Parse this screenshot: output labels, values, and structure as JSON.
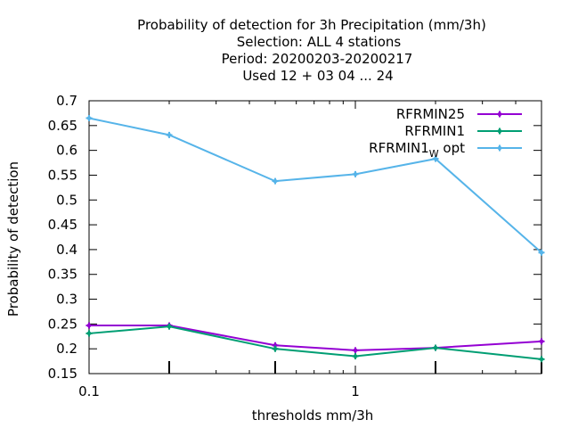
{
  "chart_data": {
    "type": "line",
    "title_lines": [
      "Probability of detection  for 3h Precipitation (mm/3h)",
      "Selection: ALL      4 stations",
      "Period: 20200203-20200217",
      "Used  12 + 03 04 ... 24"
    ],
    "xlabel": "thresholds mm/3h",
    "ylabel": "Probability of detection",
    "x_scale": "log",
    "xlim": [
      0.1,
      5
    ],
    "ylim": [
      0.15,
      0.7
    ],
    "x_ticks": [
      0.1,
      1
    ],
    "x_tick_labels": [
      "0.1",
      "1"
    ],
    "x_minor_ticks": [
      0.2,
      0.3,
      0.4,
      0.5,
      0.6,
      0.7,
      0.8,
      0.9,
      2,
      3,
      4,
      5
    ],
    "y_ticks": [
      0.15,
      0.2,
      0.25,
      0.3,
      0.35,
      0.4,
      0.45,
      0.5,
      0.55,
      0.6,
      0.65,
      0.7
    ],
    "y_tick_labels": [
      "0.15",
      "0.2",
      "0.25",
      "0.3",
      "0.35",
      "0.4",
      "0.45",
      "0.5",
      "0.55",
      "0.6",
      "0.65",
      "0.7"
    ],
    "grid": false,
    "legend_position": "top-right",
    "x": [
      0.1,
      0.2,
      0.5,
      1,
      2,
      5
    ],
    "series": [
      {
        "name": "RFRMIN25",
        "color": "#9400d3",
        "values": [
          0.247,
          0.247,
          0.207,
          0.197,
          0.202,
          0.215
        ]
      },
      {
        "name": "RFRMIN1",
        "color": "#009e73",
        "values": [
          0.231,
          0.245,
          0.2,
          0.185,
          0.202,
          0.179
        ]
      },
      {
        "name": "RFRMIN1",
        "name_subscript": "W",
        "name_suffix": " opt",
        "color": "#56b4e9",
        "values": [
          0.665,
          0.631,
          0.538,
          0.552,
          0.583,
          0.394
        ]
      }
    ]
  }
}
